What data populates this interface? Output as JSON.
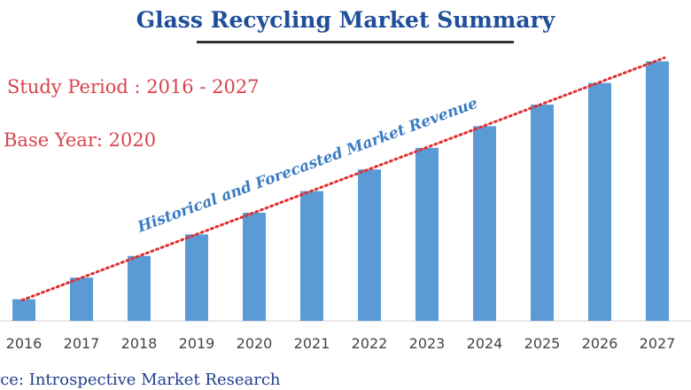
{
  "header": {
    "title": "Glass Recycling Market Summary"
  },
  "info": {
    "study_period": "Study Period : 2016 - 2027",
    "base_year": "Base Year: 2020"
  },
  "footer": {
    "source": "urce: Introspective Market Research"
  },
  "colors": {
    "bar": "#5b9bd5",
    "trend": "#e03030",
    "title": "#1f4e9a",
    "info_text": "#d9434b",
    "trend_label": "#3a7cc4"
  },
  "chart_data": {
    "type": "bar",
    "categories": [
      "2016",
      "2017",
      "2018",
      "2019",
      "2020",
      "2021",
      "2022",
      "2023",
      "2024",
      "2025",
      "2026",
      "2027"
    ],
    "values": [
      1,
      2,
      3,
      4,
      5,
      6,
      7,
      8,
      9,
      10,
      11,
      12
    ],
    "annotation": "Historical and Forecasted Market Revenue",
    "trend_line": "dotted",
    "grid": false,
    "ylim": [
      0,
      12
    ]
  }
}
